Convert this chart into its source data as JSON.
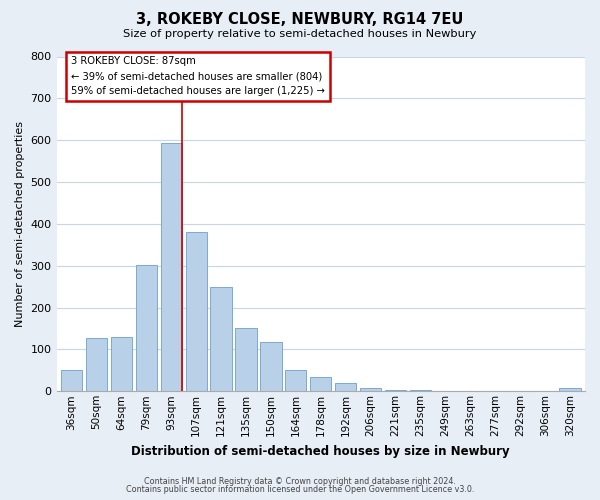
{
  "title": "3, ROKEBY CLOSE, NEWBURY, RG14 7EU",
  "subtitle": "Size of property relative to semi-detached houses in Newbury",
  "xlabel": "Distribution of semi-detached houses by size in Newbury",
  "ylabel": "Number of semi-detached properties",
  "categories": [
    "36sqm",
    "50sqm",
    "64sqm",
    "79sqm",
    "93sqm",
    "107sqm",
    "121sqm",
    "135sqm",
    "150sqm",
    "164sqm",
    "178sqm",
    "192sqm",
    "206sqm",
    "221sqm",
    "235sqm",
    "249sqm",
    "263sqm",
    "277sqm",
    "292sqm",
    "306sqm",
    "320sqm"
  ],
  "values": [
    50,
    128,
    130,
    302,
    594,
    380,
    250,
    152,
    117,
    50,
    35,
    20,
    8,
    3,
    2,
    1,
    1,
    1,
    1,
    0,
    7
  ],
  "bar_color": "#b8d0e8",
  "bar_edge_color": "#7aaad0",
  "annotation_text_line1": "3 ROKEBY CLOSE: 87sqm",
  "annotation_text_line2": "← 39% of semi-detached houses are smaller (804)",
  "annotation_text_line3": "59% of semi-detached houses are larger (1,225) →",
  "annotation_box_color": "#ffffff",
  "annotation_box_edge_color": "#cc0000",
  "vline_color": "#cc0000",
  "vline_x_index": 4,
  "ylim": [
    0,
    800
  ],
  "yticks": [
    0,
    100,
    200,
    300,
    400,
    500,
    600,
    700,
    800
  ],
  "footnote1": "Contains HM Land Registry data © Crown copyright and database right 2024.",
  "footnote2": "Contains public sector information licensed under the Open Government Licence v3.0.",
  "bg_color": "#e8eef6",
  "plot_bg_color": "#ffffff",
  "grid_color": "#c8d4e8"
}
